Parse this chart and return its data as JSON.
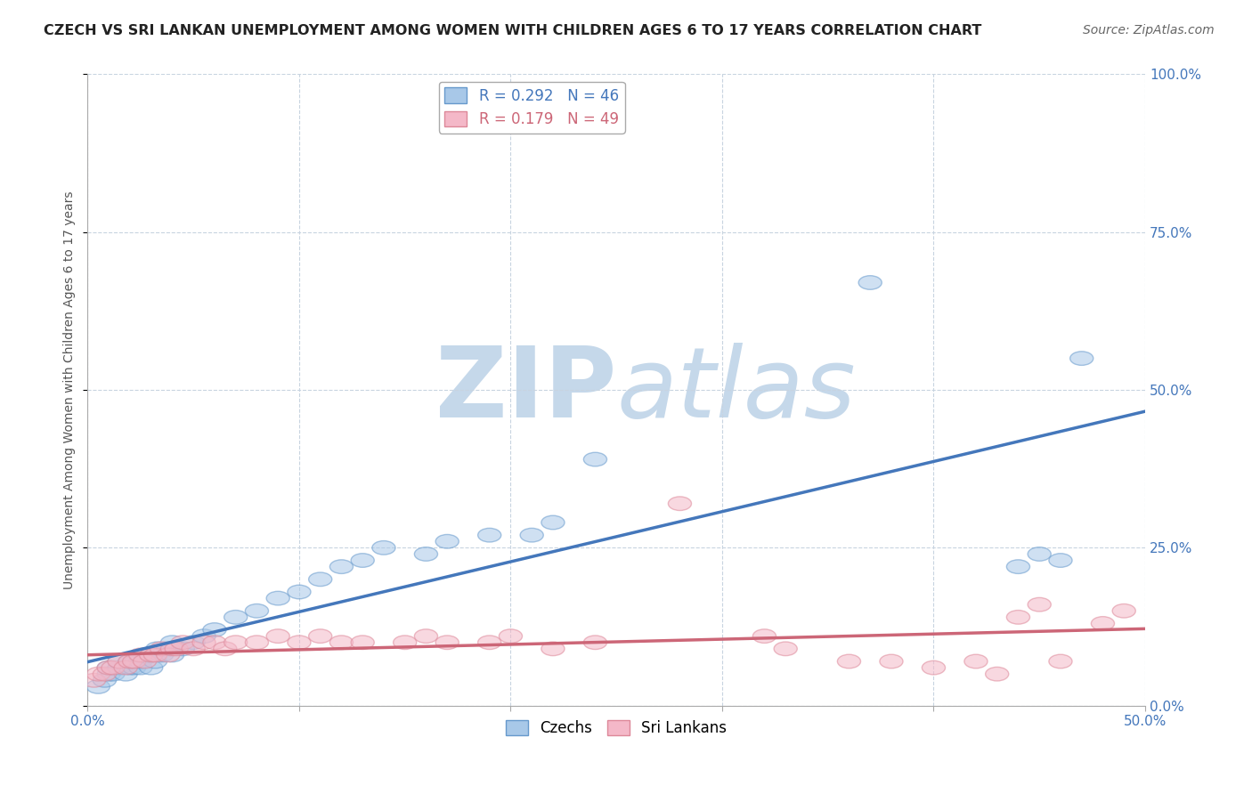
{
  "title": "CZECH VS SRI LANKAN UNEMPLOYMENT AMONG WOMEN WITH CHILDREN AGES 6 TO 17 YEARS CORRELATION CHART",
  "source": "Source: ZipAtlas.com",
  "ylabel": "Unemployment Among Women with Children Ages 6 to 17 years",
  "xlim": [
    0.0,
    0.5
  ],
  "ylim": [
    0.0,
    1.0
  ],
  "xtick_positions": [
    0.0,
    0.1,
    0.2,
    0.3,
    0.4,
    0.5
  ],
  "xtick_labels_edge": [
    "0.0%",
    "",
    "",
    "",
    "",
    "50.0%"
  ],
  "yticks_right": [
    0.0,
    0.25,
    0.5,
    0.75,
    1.0
  ],
  "ytick_right_labels": [
    "0.0%",
    "25.0%",
    "50.0%",
    "75.0%",
    "100.0%"
  ],
  "czech_R": 0.292,
  "czech_N": 46,
  "srilankan_R": 0.179,
  "srilankan_N": 49,
  "czech_color": "#a8c8e8",
  "czech_edge_color": "#6699cc",
  "czech_line_color": "#4477bb",
  "srilankan_color": "#f4b8c8",
  "srilankan_edge_color": "#dd8899",
  "srilankan_line_color": "#cc6677",
  "watermark_zip": "ZIP",
  "watermark_atlas": "atlas",
  "watermark_color": "#dde8f0",
  "background_color": "#ffffff",
  "grid_color": "#c8d4e0",
  "czech_x": [
    0.005,
    0.008,
    0.01,
    0.01,
    0.012,
    0.015,
    0.015,
    0.018,
    0.02,
    0.02,
    0.022,
    0.023,
    0.025,
    0.025,
    0.027,
    0.03,
    0.03,
    0.032,
    0.033,
    0.035,
    0.038,
    0.04,
    0.04,
    0.045,
    0.05,
    0.055,
    0.06,
    0.07,
    0.08,
    0.09,
    0.1,
    0.11,
    0.12,
    0.13,
    0.14,
    0.16,
    0.17,
    0.19,
    0.21,
    0.22,
    0.24,
    0.37,
    0.44,
    0.45,
    0.46,
    0.47
  ],
  "czech_y": [
    0.03,
    0.04,
    0.05,
    0.06,
    0.05,
    0.06,
    0.07,
    0.05,
    0.06,
    0.07,
    0.06,
    0.07,
    0.06,
    0.07,
    0.08,
    0.06,
    0.08,
    0.07,
    0.09,
    0.08,
    0.09,
    0.08,
    0.1,
    0.09,
    0.1,
    0.11,
    0.12,
    0.14,
    0.15,
    0.17,
    0.18,
    0.2,
    0.22,
    0.23,
    0.25,
    0.24,
    0.26,
    0.27,
    0.27,
    0.29,
    0.39,
    0.67,
    0.22,
    0.24,
    0.23,
    0.55
  ],
  "srilankan_x": [
    0.003,
    0.005,
    0.008,
    0.01,
    0.012,
    0.015,
    0.018,
    0.02,
    0.022,
    0.025,
    0.027,
    0.03,
    0.032,
    0.035,
    0.038,
    0.04,
    0.042,
    0.045,
    0.05,
    0.055,
    0.06,
    0.065,
    0.07,
    0.08,
    0.09,
    0.1,
    0.11,
    0.12,
    0.13,
    0.15,
    0.16,
    0.17,
    0.19,
    0.2,
    0.22,
    0.24,
    0.28,
    0.32,
    0.33,
    0.36,
    0.38,
    0.4,
    0.42,
    0.43,
    0.44,
    0.45,
    0.46,
    0.48,
    0.49
  ],
  "srilankan_y": [
    0.04,
    0.05,
    0.05,
    0.06,
    0.06,
    0.07,
    0.06,
    0.07,
    0.07,
    0.08,
    0.07,
    0.08,
    0.08,
    0.09,
    0.08,
    0.09,
    0.09,
    0.1,
    0.09,
    0.1,
    0.1,
    0.09,
    0.1,
    0.1,
    0.11,
    0.1,
    0.11,
    0.1,
    0.1,
    0.1,
    0.11,
    0.1,
    0.1,
    0.11,
    0.09,
    0.1,
    0.32,
    0.11,
    0.09,
    0.07,
    0.07,
    0.06,
    0.07,
    0.05,
    0.14,
    0.16,
    0.07,
    0.13,
    0.15
  ],
  "legend_R_label_czech": "R = 0.292   N = 46",
  "legend_R_label_sri": "R = 0.179   N = 49",
  "legend_bottom_labels": [
    "Czechs",
    "Sri Lankans"
  ]
}
